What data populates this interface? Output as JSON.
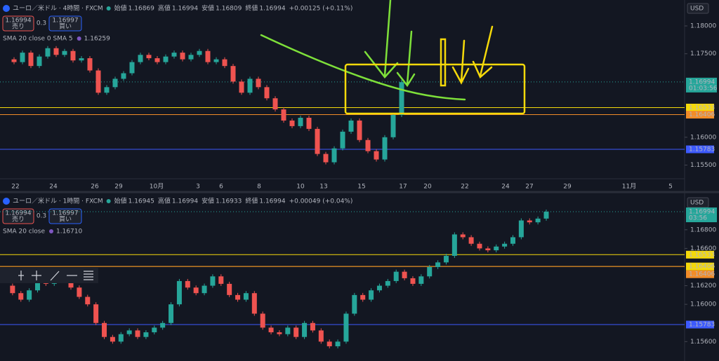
{
  "panels": [
    {
      "header": {
        "symbol": "ユーロ／米ドル · 4時間 · FXCM",
        "fields": [
          {
            "label": "始値",
            "value": "1.16869"
          },
          {
            "label": "高値",
            "value": "1.16994"
          },
          {
            "label": "安値",
            "value": "1.16809"
          },
          {
            "label": "終値",
            "value": "1.16994"
          }
        ],
        "change": "+0.00125 (+0.11%)"
      },
      "order": {
        "sell_price": "1.16994",
        "sell_label": "売り",
        "spread": "0.3",
        "buy_price": "1.16997",
        "buy_label": "買い"
      },
      "indicator": {
        "name": "SMA 20 close 0 SMA 5",
        "value": "1.16259"
      },
      "currency": "USD",
      "ylim": [
        1.15292,
        1.18466
      ],
      "price_ticks": [
        {
          "value": 1.18,
          "label": "1.18000"
        },
        {
          "value": 1.175,
          "label": "1.17500"
        },
        {
          "value": 1.16,
          "label": "1.16000"
        },
        {
          "value": 1.155,
          "label": "1.15500"
        }
      ],
      "levels": [
        {
          "value": 1.16533,
          "color": "#f5d90a"
        },
        {
          "value": 1.16406,
          "color": "#f28c28"
        },
        {
          "value": 1.15783,
          "color": "#3d5afe"
        }
      ],
      "last": {
        "value": 1.16994,
        "timer": "01:03:56"
      },
      "dates": [
        "22",
        "24",
        "26",
        "29",
        "10月",
        "3",
        "6",
        "8",
        "10",
        "13",
        "15",
        "17",
        "20",
        "22",
        "24",
        "27",
        "29",
        "11月",
        "5"
      ],
      "closes": [
        1.174,
        1.1735,
        1.1752,
        1.1728,
        1.1745,
        1.176,
        1.1748,
        1.1755,
        1.1738,
        1.1742,
        1.172,
        1.168,
        1.169,
        1.1705,
        1.1715,
        1.1735,
        1.1748,
        1.1742,
        1.1735,
        1.1745,
        1.1752,
        1.174,
        1.1748,
        1.1755,
        1.1735,
        1.174,
        1.1728,
        1.17,
        1.168,
        1.1705,
        1.169,
        1.167,
        1.165,
        1.163,
        1.162,
        1.1635,
        1.1615,
        1.157,
        1.1555,
        1.158,
        1.161,
        1.163,
        1.1595,
        1.1575,
        1.156,
        1.16,
        1.164,
        1.1699
      ]
    },
    {
      "header": {
        "symbol": "ユーロ／米ドル · 1時間 · FXCM",
        "fields": [
          {
            "label": "始値",
            "value": "1.16945"
          },
          {
            "label": "高値",
            "value": "1.16994"
          },
          {
            "label": "安値",
            "value": "1.16933"
          },
          {
            "label": "終値",
            "value": "1.16994"
          }
        ],
        "change": "+0.00049 (+0.04%)"
      },
      "order": {
        "sell_price": "1.16994",
        "sell_label": "売り",
        "spread": "0.3",
        "buy_price": "1.16997",
        "buy_label": "買い"
      },
      "indicator": {
        "name": "SMA 20 close",
        "value": "1.16710"
      },
      "currency": "USD",
      "ylim": [
        1.15392,
        1.17182
      ],
      "price_ticks": [
        {
          "value": 1.168,
          "label": "1.16800"
        },
        {
          "value": 1.166,
          "label": "1.16600"
        },
        {
          "value": 1.162,
          "label": "1.16200"
        },
        {
          "value": 1.16,
          "label": "1.16000"
        },
        {
          "value": 1.156,
          "label": "1.15600"
        }
      ],
      "levels": [
        {
          "value": 1.16533,
          "color": "#f5d90a"
        },
        {
          "value": 1.16406,
          "color": "#f5d90a"
        },
        {
          "value": 1.16406,
          "color": "#f28c28"
        },
        {
          "value": 1.15783,
          "color": "#3d5afe"
        }
      ],
      "last": {
        "value": 1.16994,
        "timer": "03:56"
      },
      "closes": [
        1.162,
        1.1612,
        1.1605,
        1.1615,
        1.1628,
        1.1622,
        1.1632,
        1.1625,
        1.1618,
        1.1608,
        1.16,
        1.158,
        1.1565,
        1.156,
        1.1568,
        1.1572,
        1.1565,
        1.157,
        1.1575,
        1.158,
        1.16,
        1.1625,
        1.1618,
        1.1612,
        1.162,
        1.163,
        1.1622,
        1.161,
        1.1605,
        1.1612,
        1.159,
        1.1575,
        1.157,
        1.1568,
        1.1575,
        1.1565,
        1.158,
        1.1572,
        1.156,
        1.1555,
        1.156,
        1.159,
        1.161,
        1.1605,
        1.1615,
        1.162,
        1.1625,
        1.1635,
        1.1628,
        1.1622,
        1.163,
        1.164,
        1.1645,
        1.1652,
        1.1675,
        1.1672,
        1.1665,
        1.166,
        1.1658,
        1.1662,
        1.1665,
        1.1672,
        1.169,
        1.1688,
        1.1692,
        1.16994
      ]
    }
  ]
}
